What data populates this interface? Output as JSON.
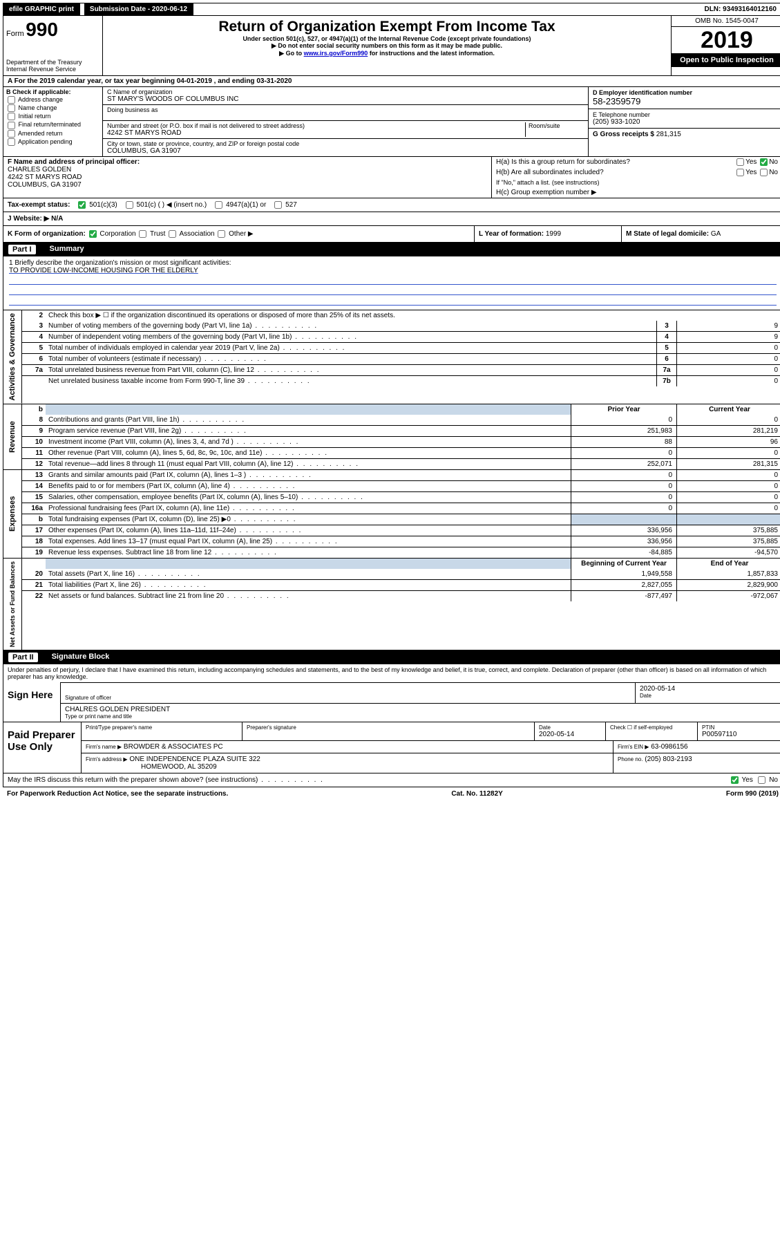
{
  "topbar": {
    "efile": "efile GRAPHIC print",
    "submission_label": "Submission Date - 2020-06-12",
    "dln": "DLN: 93493164012160"
  },
  "header": {
    "form_prefix": "Form",
    "form_number": "990",
    "dept": "Department of the Treasury",
    "irs": "Internal Revenue Service",
    "title": "Return of Organization Exempt From Income Tax",
    "subtitle": "Under section 501(c), 527, or 4947(a)(1) of the Internal Revenue Code (except private foundations)",
    "note1": "▶ Do not enter social security numbers on this form as it may be made public.",
    "note2_pre": "▶ Go to ",
    "note2_link": "www.irs.gov/Form990",
    "note2_post": " for instructions and the latest information.",
    "omb": "OMB No. 1545-0047",
    "year": "2019",
    "open": "Open to Public Inspection"
  },
  "period": "A For the 2019 calendar year, or tax year beginning 04-01-2019  , and ending 03-31-2020",
  "boxB": {
    "label": "B Check if applicable:",
    "opts": [
      "Address change",
      "Name change",
      "Initial return",
      "Final return/terminated",
      "Amended return",
      "Application pending"
    ]
  },
  "boxC": {
    "name_label": "C Name of organization",
    "name": "ST MARY'S WOODS OF COLUMBUS INC",
    "dba_label": "Doing business as",
    "street_label": "Number and street (or P.O. box if mail is not delivered to street address)",
    "room_label": "Room/suite",
    "street": "4242 ST MARYS ROAD",
    "city_label": "City or town, state or province, country, and ZIP or foreign postal code",
    "city": "COLUMBUS, GA  31907"
  },
  "boxD": {
    "label": "D Employer identification number",
    "value": "58-2359579"
  },
  "boxE": {
    "label": "E Telephone number",
    "value": "(205) 933-1020"
  },
  "boxG": {
    "label": "G Gross receipts $",
    "value": "281,315"
  },
  "boxF": {
    "label": "F Name and address of principal officer:",
    "name": "CHARLES GOLDEN",
    "addr1": "4242 ST MARYS ROAD",
    "addr2": "COLUMBUS, GA  31907"
  },
  "boxH": {
    "ha": "H(a) Is this a group return for subordinates?",
    "hb": "H(b) Are all subordinates included?",
    "hb_note": "If \"No,\" attach a list. (see instructions)",
    "hc": "H(c) Group exemption number ▶",
    "yes": "Yes",
    "no": "No"
  },
  "taxstatus": {
    "label": "Tax-exempt status:",
    "o1": "501(c)(3)",
    "o2": "501(c) (  ) ◀ (insert no.)",
    "o3": "4947(a)(1) or",
    "o4": "527"
  },
  "website": {
    "label": "J  Website: ▶",
    "value": "N/A"
  },
  "boxK": {
    "label": "K Form of organization:",
    "opts": [
      "Corporation",
      "Trust",
      "Association",
      "Other ▶"
    ]
  },
  "boxL": {
    "label": "L Year of formation:",
    "value": "1999"
  },
  "boxM": {
    "label": "M State of legal domicile:",
    "value": "GA"
  },
  "part1": {
    "header_num": "Part I",
    "header_text": "Summary",
    "mission_label": "1  Briefly describe the organization's mission or most significant activities:",
    "mission": "TO PROVIDE LOW-INCOME HOUSING FOR THE ELDERLY",
    "line2": "Check this box ▶ ☐  if the organization discontinued its operations or disposed of more than 25% of its net assets.",
    "sections": {
      "gov": "Activities & Governance",
      "rev": "Revenue",
      "exp": "Expenses",
      "net": "Net Assets or Fund Balances"
    },
    "col_prior": "Prior Year",
    "col_curr": "Current Year",
    "col_beg": "Beginning of Current Year",
    "col_end": "End of Year",
    "lines_gov": [
      {
        "n": "3",
        "t": "Number of voting members of the governing body (Part VI, line 1a)",
        "box": "3",
        "v": "9"
      },
      {
        "n": "4",
        "t": "Number of independent voting members of the governing body (Part VI, line 1b)",
        "box": "4",
        "v": "9"
      },
      {
        "n": "5",
        "t": "Total number of individuals employed in calendar year 2019 (Part V, line 2a)",
        "box": "5",
        "v": "0"
      },
      {
        "n": "6",
        "t": "Total number of volunteers (estimate if necessary)",
        "box": "6",
        "v": "0"
      },
      {
        "n": "7a",
        "t": "Total unrelated business revenue from Part VIII, column (C), line 12",
        "box": "7a",
        "v": "0"
      },
      {
        "n": "",
        "t": "Net unrelated business taxable income from Form 990-T, line 39",
        "box": "7b",
        "v": "0"
      }
    ],
    "lines_rev": [
      {
        "n": "8",
        "t": "Contributions and grants (Part VIII, line 1h)",
        "p": "0",
        "c": "0"
      },
      {
        "n": "9",
        "t": "Program service revenue (Part VIII, line 2g)",
        "p": "251,983",
        "c": "281,219"
      },
      {
        "n": "10",
        "t": "Investment income (Part VIII, column (A), lines 3, 4, and 7d )",
        "p": "88",
        "c": "96"
      },
      {
        "n": "11",
        "t": "Other revenue (Part VIII, column (A), lines 5, 6d, 8c, 9c, 10c, and 11e)",
        "p": "0",
        "c": "0"
      },
      {
        "n": "12",
        "t": "Total revenue—add lines 8 through 11 (must equal Part VIII, column (A), line 12)",
        "p": "252,071",
        "c": "281,315"
      }
    ],
    "lines_exp": [
      {
        "n": "13",
        "t": "Grants and similar amounts paid (Part IX, column (A), lines 1–3 )",
        "p": "0",
        "c": "0"
      },
      {
        "n": "14",
        "t": "Benefits paid to or for members (Part IX, column (A), line 4)",
        "p": "0",
        "c": "0"
      },
      {
        "n": "15",
        "t": "Salaries, other compensation, employee benefits (Part IX, column (A), lines 5–10)",
        "p": "0",
        "c": "0"
      },
      {
        "n": "16a",
        "t": "Professional fundraising fees (Part IX, column (A), line 11e)",
        "p": "0",
        "c": "0"
      },
      {
        "n": "b",
        "t": "Total fundraising expenses (Part IX, column (D), line 25) ▶0",
        "p": "",
        "c": "",
        "shaded": true
      },
      {
        "n": "17",
        "t": "Other expenses (Part IX, column (A), lines 11a–11d, 11f–24e)",
        "p": "336,956",
        "c": "375,885"
      },
      {
        "n": "18",
        "t": "Total expenses. Add lines 13–17 (must equal Part IX, column (A), line 25)",
        "p": "336,956",
        "c": "375,885"
      },
      {
        "n": "19",
        "t": "Revenue less expenses. Subtract line 18 from line 12",
        "p": "-84,885",
        "c": "-94,570"
      }
    ],
    "lines_net": [
      {
        "n": "20",
        "t": "Total assets (Part X, line 16)",
        "p": "1,949,558",
        "c": "1,857,833"
      },
      {
        "n": "21",
        "t": "Total liabilities (Part X, line 26)",
        "p": "2,827,055",
        "c": "2,829,900"
      },
      {
        "n": "22",
        "t": "Net assets or fund balances. Subtract line 21 from line 20",
        "p": "-877,497",
        "c": "-972,067"
      }
    ]
  },
  "part2": {
    "header_num": "Part II",
    "header_text": "Signature Block",
    "decl": "Under penalties of perjury, I declare that I have examined this return, including accompanying schedules and statements, and to the best of my knowledge and belief, it is true, correct, and complete. Declaration of preparer (other than officer) is based on all information of which preparer has any knowledge.",
    "sign_here": "Sign Here",
    "sig_officer": "Signature of officer",
    "sig_date": "2020-05-14",
    "date_label": "Date",
    "officer_name": "CHALRES GOLDEN  PRESIDENT",
    "type_label": "Type or print name and title",
    "paid": "Paid Preparer Use Only",
    "prep_name_label": "Print/Type preparer's name",
    "prep_sig_label": "Preparer's signature",
    "prep_date_label": "Date",
    "prep_date": "2020-05-14",
    "check_self": "Check ☐ if self-employed",
    "ptin_label": "PTIN",
    "ptin": "P00597110",
    "firm_name_label": "Firm's name    ▶",
    "firm_name": "BROWDER & ASSOCIATES PC",
    "firm_ein_label": "Firm's EIN ▶",
    "firm_ein": "63-0986156",
    "firm_addr_label": "Firm's address ▶",
    "firm_addr1": "ONE INDEPENDENCE PLAZA SUITE 322",
    "firm_addr2": "HOMEWOOD, AL  35209",
    "phone_label": "Phone no.",
    "phone": "(205) 803-2193",
    "discuss": "May the IRS discuss this return with the preparer shown above? (see instructions)",
    "yes": "Yes",
    "no": "No"
  },
  "footer": {
    "pra": "For Paperwork Reduction Act Notice, see the separate instructions.",
    "cat": "Cat. No. 11282Y",
    "form": "Form 990 (2019)"
  }
}
